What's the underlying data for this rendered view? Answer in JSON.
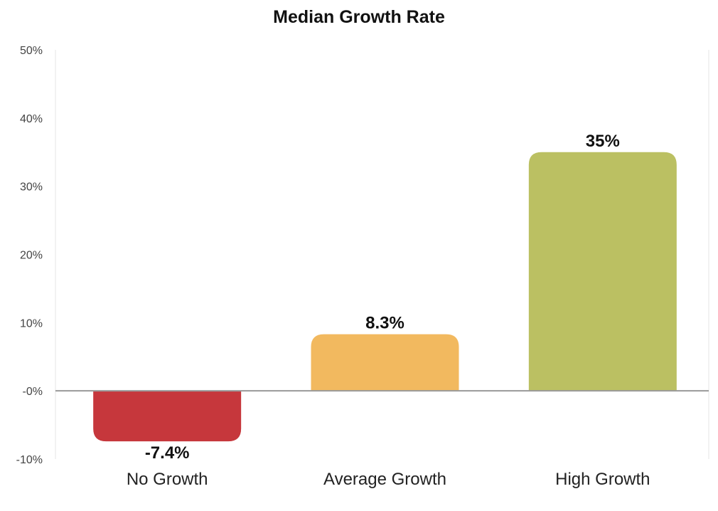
{
  "chart_data": {
    "type": "bar",
    "title": "Median Growth Rate",
    "xlabel": "",
    "ylabel": "",
    "categories": [
      "No Growth",
      "Average Growth",
      "High Growth"
    ],
    "values": [
      -7.4,
      8.3,
      35
    ],
    "data_labels": [
      "-7.4%",
      "8.3%",
      "35%"
    ],
    "bar_colors": [
      "#c6373c",
      "#f2b95f",
      "#bbc062"
    ],
    "ylim": [
      -10,
      50
    ],
    "yticks": [
      50,
      40,
      30,
      20,
      10,
      0,
      -10
    ],
    "ytick_labels": [
      "50%",
      "40%",
      "30%",
      "20%",
      "10%",
      "-0%",
      "-10%"
    ],
    "grid": false,
    "legend": "none",
    "zero_line_color": "#9a9a9a",
    "axis_color": "#e6e6e6"
  }
}
